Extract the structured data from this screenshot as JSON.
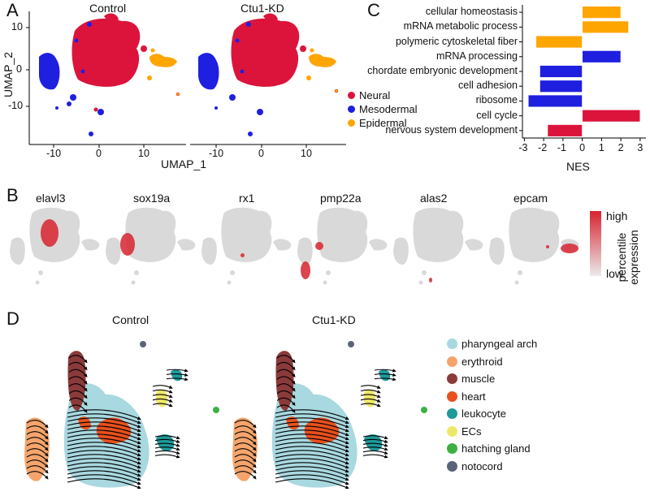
{
  "panels": {
    "A": {
      "letter": "A",
      "titles": [
        "Control",
        "Ctu1-KD"
      ],
      "xlabel": "UMAP_1",
      "ylabel": "UMAP_2",
      "yticks": [
        "10",
        "0",
        "-10"
      ],
      "xticks": [
        "-10",
        "0",
        "10"
      ],
      "legend": [
        {
          "name": "Neural",
          "color": "#DC143C"
        },
        {
          "name": "Mesodermal",
          "color": "#1F1FE0"
        },
        {
          "name": "Epidermal",
          "color": "#FFA500"
        }
      ]
    },
    "B": {
      "letter": "B",
      "genes": [
        "elavl3",
        "sox19a",
        "rx1",
        "pmp22a",
        "alas2",
        "epcam"
      ],
      "colorbar_title": "percentile expression",
      "colorbar_high": "high",
      "colorbar_low": "low"
    },
    "C": {
      "letter": "C"
    },
    "D": {
      "letter": "D",
      "titles": [
        "Control",
        "Ctu1-KD"
      ],
      "legend": [
        {
          "name": "pharyngeal arch",
          "color": "#A8D8E0"
        },
        {
          "name": "erythroid",
          "color": "#F4A46C"
        },
        {
          "name": "muscle",
          "color": "#8B3A3A"
        },
        {
          "name": "heart",
          "color": "#E8501E"
        },
        {
          "name": "leukocyte",
          "color": "#1E9A9A"
        },
        {
          "name": "ECs",
          "color": "#EEE86A"
        },
        {
          "name": "hatching gland",
          "color": "#3CB043"
        },
        {
          "name": "notocord",
          "color": "#5A6478"
        }
      ]
    }
  },
  "chart_data": {
    "type": "bar",
    "orientation": "horizontal",
    "categories": [
      "cellular homeostasis",
      "mRNA metabolic process",
      "polymeric cytoskeletal fiber",
      "mRNA processing",
      "chordate embryonic development",
      "cell adhesion",
      "ribosome",
      "cell cycle",
      "nervous system development"
    ],
    "values": [
      2.0,
      2.4,
      -2.4,
      2.0,
      -2.2,
      -2.2,
      -2.8,
      3.0,
      -1.8
    ],
    "colors": [
      "#FFA500",
      "#FFA500",
      "#FFA500",
      "#1F1FE0",
      "#1F1FE0",
      "#1F1FE0",
      "#1F1FE0",
      "#DC143C",
      "#DC143C"
    ],
    "xlabel": "NES",
    "xticks": [
      "-3",
      "-2",
      "-1",
      "0",
      "1",
      "2",
      "3"
    ],
    "xlim": [
      -3.1,
      3.3
    ]
  }
}
